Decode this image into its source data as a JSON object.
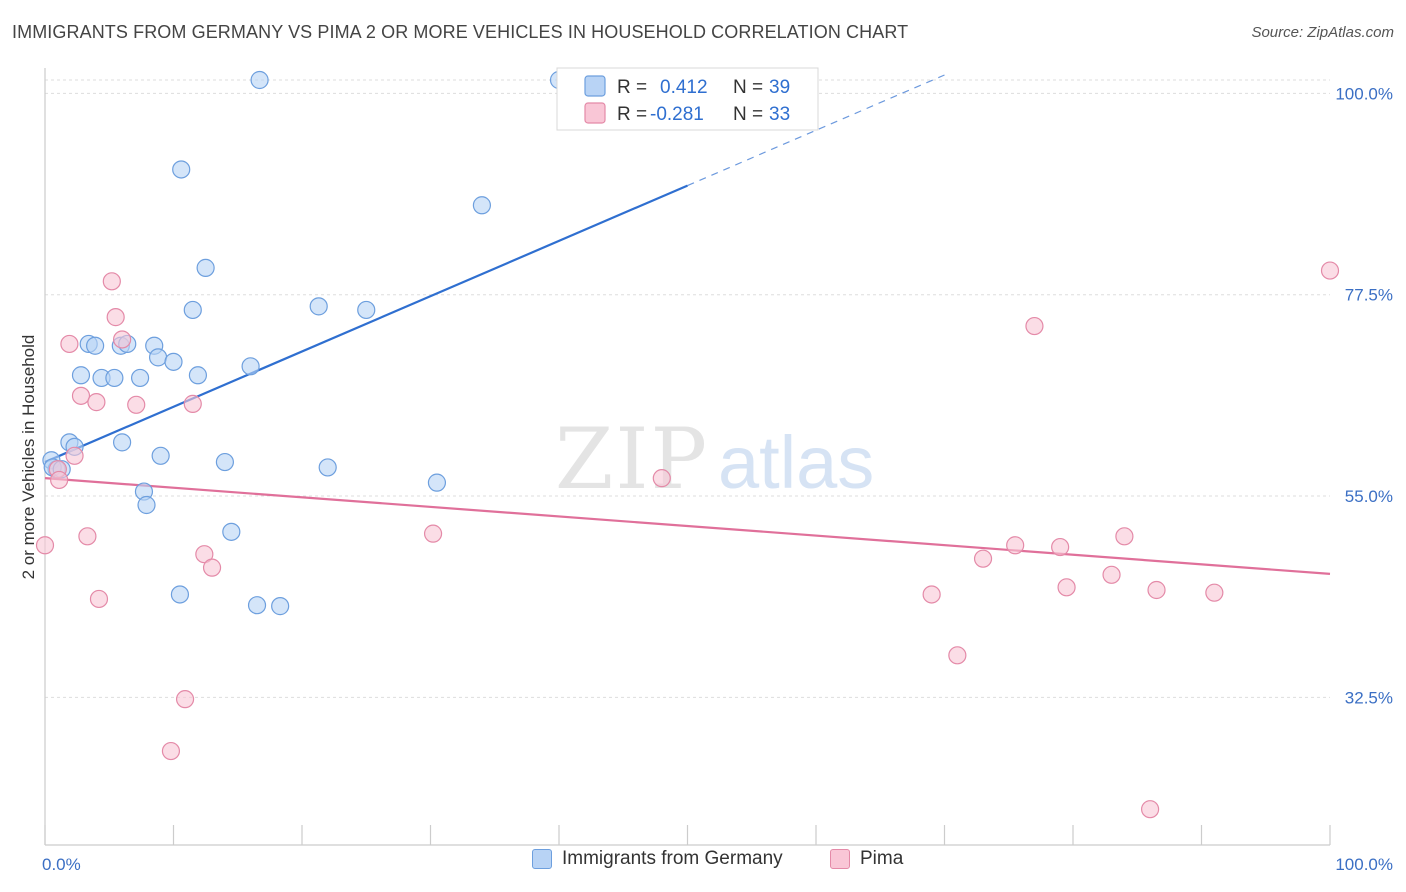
{
  "header": {
    "title": "IMMIGRANTS FROM GERMANY VS PIMA 2 OR MORE VEHICLES IN HOUSEHOLD CORRELATION CHART",
    "source": "Source: ZipAtlas.com"
  },
  "watermark": {
    "zip": "ZIP",
    "atlas": "atlas"
  },
  "legend_top": [
    {
      "r_label": "R =",
      "r_value": "0.412",
      "n_label": "N =",
      "n_value": "39"
    },
    {
      "r_label": "R =",
      "r_value": "-0.281",
      "n_label": "N =",
      "n_value": "33"
    }
  ],
  "legend_bottom": [
    {
      "label": "Immigrants from Germany"
    },
    {
      "label": "Pima"
    }
  ],
  "colors": {
    "germany_fill": "#b8d3f5",
    "germany_stroke": "#6d9fde",
    "germany_line": "#2f6fd0",
    "pima_fill": "#f9c6d6",
    "pima_stroke": "#e48aa8",
    "pima_line": "#e0709a",
    "tick_text": "#3b6fc4",
    "grid": "#dddddd"
  },
  "chart_data": {
    "type": "scatter",
    "title": "IMMIGRANTS FROM GERMANY VS PIMA 2 OR MORE VEHICLES IN HOUSEHOLD CORRELATION CHART",
    "xlabel": "",
    "ylabel": "2 or more Vehicles in Household",
    "xlim": [
      0,
      100
    ],
    "ylim": [
      16,
      101.5
    ],
    "x_tick_labels": [
      "0.0%",
      "100.0%"
    ],
    "y_ticks": [
      32.5,
      55.0,
      77.5,
      100.0
    ],
    "y_tick_labels": [
      "32.5%",
      "55.0%",
      "77.5%",
      "100.0%"
    ],
    "grid": true,
    "legend_position": "top-center",
    "series": [
      {
        "name": "Immigrants from Germany",
        "points": [
          [
            0.5,
            59.0
          ],
          [
            0.9,
            58.0
          ],
          [
            1.9,
            61.0
          ],
          [
            2.3,
            60.5
          ],
          [
            2.8,
            68.5
          ],
          [
            3.4,
            72.0
          ],
          [
            3.9,
            71.8
          ],
          [
            4.4,
            68.2
          ],
          [
            5.4,
            68.2
          ],
          [
            5.9,
            71.8
          ],
          [
            6.0,
            61.0
          ],
          [
            6.4,
            72.0
          ],
          [
            7.4,
            68.2
          ],
          [
            8.5,
            71.8
          ],
          [
            8.8,
            70.5
          ],
          [
            9.0,
            59.5
          ],
          [
            7.7,
            55.5
          ],
          [
            7.9,
            54.0
          ],
          [
            10.0,
            70.0
          ],
          [
            10.5,
            44.0
          ],
          [
            10.6,
            91.5
          ],
          [
            11.5,
            75.8
          ],
          [
            11.9,
            68.5
          ],
          [
            12.5,
            80.5
          ],
          [
            14.0,
            58.8
          ],
          [
            14.5,
            51.0
          ],
          [
            16.0,
            69.5
          ],
          [
            16.5,
            42.8
          ],
          [
            16.7,
            101.5
          ],
          [
            18.3,
            42.7
          ],
          [
            21.3,
            76.2
          ],
          [
            22.0,
            58.2
          ],
          [
            25.0,
            75.8
          ],
          [
            30.5,
            56.5
          ],
          [
            34.0,
            87.5
          ],
          [
            40.0,
            101.5
          ],
          [
            47.5,
            101.5
          ],
          [
            0.6,
            58.2
          ],
          [
            1.3,
            58.0
          ]
        ]
      },
      {
        "name": "Pima",
        "points": [
          [
            0.0,
            49.5
          ],
          [
            1.0,
            58.0
          ],
          [
            1.1,
            56.8
          ],
          [
            1.9,
            72.0
          ],
          [
            2.3,
            59.5
          ],
          [
            2.8,
            66.2
          ],
          [
            3.3,
            50.5
          ],
          [
            4.0,
            65.5
          ],
          [
            4.2,
            43.5
          ],
          [
            5.2,
            79.0
          ],
          [
            5.5,
            75.0
          ],
          [
            6.0,
            72.5
          ],
          [
            7.1,
            65.2
          ],
          [
            9.8,
            26.5
          ],
          [
            10.9,
            32.3
          ],
          [
            11.5,
            65.3
          ],
          [
            12.4,
            48.5
          ],
          [
            13.0,
            47.0
          ],
          [
            30.2,
            50.8
          ],
          [
            48.0,
            57.0
          ],
          [
            69.0,
            44.0
          ],
          [
            71.0,
            37.2
          ],
          [
            73.0,
            48.0
          ],
          [
            75.5,
            49.5
          ],
          [
            77.0,
            74.0
          ],
          [
            79.0,
            49.3
          ],
          [
            79.5,
            44.8
          ],
          [
            83.0,
            46.2
          ],
          [
            84.0,
            50.5
          ],
          [
            86.0,
            20.0
          ],
          [
            86.5,
            44.5
          ],
          [
            91.0,
            44.2
          ],
          [
            100.0,
            80.2
          ]
        ]
      }
    ],
    "trend_lines": [
      {
        "series": "Immigrants from Germany",
        "x": [
          0,
          50
        ],
        "y": [
          58.8,
          89.7
        ],
        "dashed_extension_to_x": 70
      },
      {
        "series": "Pima",
        "x": [
          0,
          100
        ],
        "y": [
          57.0,
          46.3
        ]
      }
    ]
  }
}
